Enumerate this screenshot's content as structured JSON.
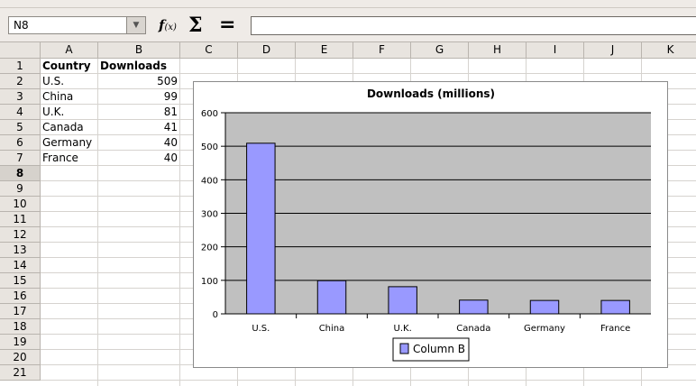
{
  "formula_bar": {
    "name_box": "N8",
    "function_wizard": "f(x)",
    "sum_symbol": "Σ",
    "equals_symbol": "=",
    "formula_value": ""
  },
  "columns": [
    "A",
    "B",
    "C",
    "D",
    "E",
    "F",
    "G",
    "H",
    "I",
    "J",
    "K"
  ],
  "rows": [
    "1",
    "2",
    "3",
    "4",
    "5",
    "6",
    "7",
    "8",
    "9",
    "10",
    "11",
    "12",
    "13",
    "14",
    "15",
    "16",
    "17",
    "18",
    "19",
    "20",
    "21"
  ],
  "active_row": "8",
  "table": {
    "headers": [
      "Country",
      "Downloads"
    ],
    "rows": [
      [
        "U.S.",
        "509"
      ],
      [
        "China",
        "99"
      ],
      [
        "U.K.",
        "81"
      ],
      [
        "Canada",
        "41"
      ],
      [
        "Germany",
        "40"
      ],
      [
        "France",
        "40"
      ]
    ]
  },
  "chart_data": {
    "type": "bar",
    "title": "Downloads (millions)",
    "categories": [
      "U.S.",
      "China",
      "U.K.",
      "Canada",
      "Germany",
      "France"
    ],
    "series": [
      {
        "name": "Column B",
        "values": [
          509,
          99,
          81,
          41,
          40,
          40
        ]
      }
    ],
    "ylim": [
      0,
      600
    ],
    "yticks": [
      "0",
      "100",
      "200",
      "300",
      "400",
      "500",
      "600"
    ],
    "grid": true,
    "legend": "bottom",
    "bar_color": "#9999ff",
    "plot_bg": "#c0c0c0"
  }
}
